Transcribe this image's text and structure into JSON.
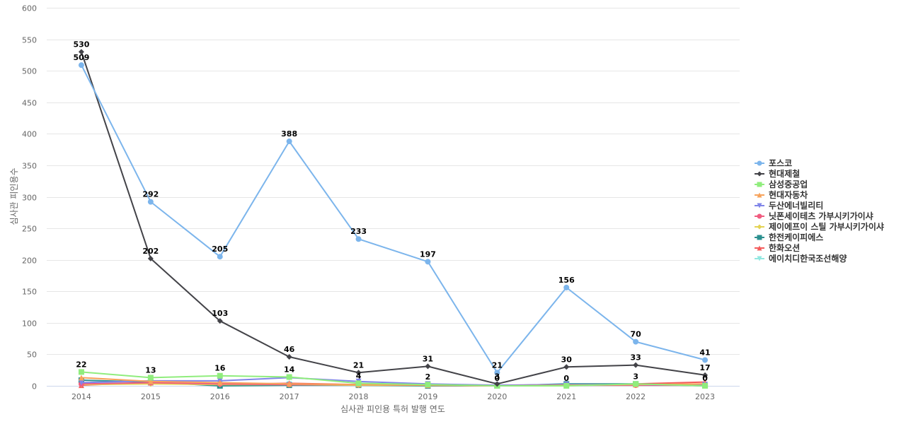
{
  "chart_data": {
    "type": "line",
    "title": "",
    "xlabel": "심사관 피인용 특허 발행 연도",
    "ylabel": "심사관 피인용수",
    "ylim": [
      0,
      600
    ],
    "yticks": [
      0,
      50,
      100,
      150,
      200,
      250,
      300,
      350,
      400,
      450,
      500,
      550,
      600
    ],
    "categories": [
      "2014",
      "2015",
      "2016",
      "2017",
      "2018",
      "2019",
      "2020",
      "2021",
      "2022",
      "2023"
    ],
    "legend_position": "right",
    "series": [
      {
        "name": "포스코",
        "color": "#7cb5ec",
        "marker": "circle",
        "values": [
          509,
          292,
          205,
          388,
          233,
          197,
          21,
          156,
          70,
          41
        ],
        "labeled": true
      },
      {
        "name": "현대제철",
        "color": "#434348",
        "marker": "diamond",
        "values": [
          530,
          202,
          103,
          46,
          21,
          31,
          3,
          30,
          33,
          17
        ],
        "labeled": true
      },
      {
        "name": "삼성중공업",
        "color": "#90ed7d",
        "marker": "square",
        "values": [
          22,
          13,
          16,
          14,
          4,
          2,
          0,
          0,
          3,
          0
        ],
        "labeled": true
      },
      {
        "name": "현대자동차",
        "color": "#f7a35c",
        "marker": "triangle",
        "values": [
          13,
          7,
          5,
          3,
          2,
          1,
          0,
          1,
          2,
          3
        ]
      },
      {
        "name": "두산에너빌리티",
        "color": "#8085e9",
        "marker": "triangle-down",
        "values": [
          5,
          8,
          8,
          13,
          7,
          3,
          1,
          2,
          2,
          2
        ]
      },
      {
        "name": "닛폰세이테츠 가부시키가이샤",
        "color": "#f15c80",
        "marker": "circle",
        "values": [
          3,
          5,
          3,
          2,
          2,
          1,
          0,
          1,
          1,
          1
        ]
      },
      {
        "name": "제이에프이 스틸 가부시키가이샤",
        "color": "#e4d354",
        "marker": "diamond",
        "values": [
          2,
          3,
          2,
          2,
          1,
          1,
          0,
          1,
          1,
          1
        ]
      },
      {
        "name": "한전케이피에스",
        "color": "#2b908f",
        "marker": "square",
        "values": [
          9,
          6,
          0,
          1,
          1,
          0,
          0,
          3,
          3,
          0
        ]
      },
      {
        "name": "한화오션",
        "color": "#f45b5b",
        "marker": "triangle",
        "values": [
          1,
          5,
          2,
          4,
          2,
          1,
          0,
          1,
          3,
          6
        ]
      },
      {
        "name": "에이치디한국조선해양",
        "color": "#91e8e1",
        "marker": "triangle-down",
        "values": [
          5,
          4,
          3,
          3,
          1,
          1,
          0,
          1,
          2,
          1
        ]
      }
    ]
  }
}
